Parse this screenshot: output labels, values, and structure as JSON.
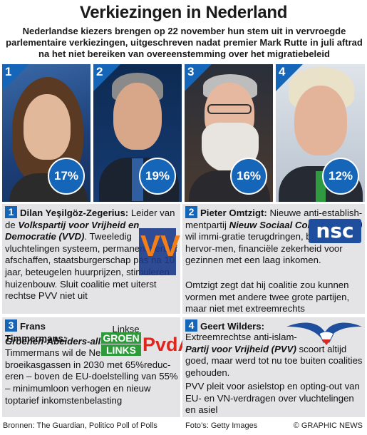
{
  "title": "Verkiezingen in Nederland",
  "subtitle": "Nederlandse kiezers brengen op 22 november hun stem uit in vervroegde parlementaire verkiezingen, uitgeschreven nadat premier Mark Rutte in juli aftrad na het niet bereiken van overeenstemming over het migratiebeleid",
  "colors": {
    "accent": "#1565b8",
    "panel": "#e4e4e6",
    "vvd_orange": "#f57f17",
    "vvd_blue": "#1a3a8a",
    "nsc_blue": "#1f4e9e",
    "gl_green": "#2e9b3a",
    "pvda_red": "#e0261c"
  },
  "candidates": [
    {
      "rank": "1",
      "percent": "17%"
    },
    {
      "rank": "2",
      "percent": "19%"
    },
    {
      "rank": "3",
      "percent": "16%"
    },
    {
      "rank": "4",
      "percent": "12%"
    }
  ],
  "panels": {
    "p1": {
      "num": "1",
      "name": "Dilan Yeşilgöz-Zegerius:",
      "t1": " Leider van de ",
      "party": "Volkspartij voor Vrijheid en Democratie (VVD)",
      "t2": ". Tweeledig vluchtelingen systeem, permanent verblijf afschaffen, staatsburgerschap pas na 10 jaar, beteugelen huurprijzen, stimuleren huizenbouw. Sluit coalitie met uiterst rechtse PVV niet uit",
      "logo": "VVD"
    },
    "p2": {
      "num": "2",
      "name": "Pieter Omtzigt:",
      "t1": " Nieuwe anti-establish-mentpartij ",
      "party": "Nieuw Sociaal Contract (NSC)",
      "t2": " wil immi-gratie terugdringen, belastingen hervor-men, financiële zekerheid voor gezinnen met een laag inkomen.",
      "t3": "Omtzigt zegt dat hij coalitie zou kunnen vormen met andere twee grote partijen, maar niet met extreemrechts",
      "logo": "nsc"
    },
    "p3": {
      "num": "3",
      "name": "Frans Timmermans:",
      "t1": " Linkse ",
      "party": "Groenen-Abeiders-alliantie (GL/PvdA)",
      "t2": ". Timmermans wil de Nederlandse uitstoot broeikasgassen in 2030 met 65%reduc-eren – boven de EU-doelstelling van 55% – minimumloon verhogen en nieuw toptarief inkomstenbelasting",
      "logo_line1": "GROEN",
      "logo_line2": "LINKS",
      "logo_line3": "PvdA"
    },
    "p4": {
      "num": "4",
      "name": "Geert Wilders:",
      "t1": "Extreemrechtse anti-islam-",
      "party": "Partij voor Vrijheid (PVV)",
      "t2": " scoort altijd goed, maar werd tot nu toe buiten coalities gehouden.",
      "t3": "PVV pleit voor asielstop en opting-out van EU- en VN-verdragen over vluchtelingen en asiel",
      "logo": "pvv-seagull"
    }
  },
  "footer": {
    "sources": "Bronnen: The Guardian, Politico Poll of Polls",
    "photos": "Foto’s: Getty Images",
    "credit": "© GRAPHIC NEWS"
  }
}
